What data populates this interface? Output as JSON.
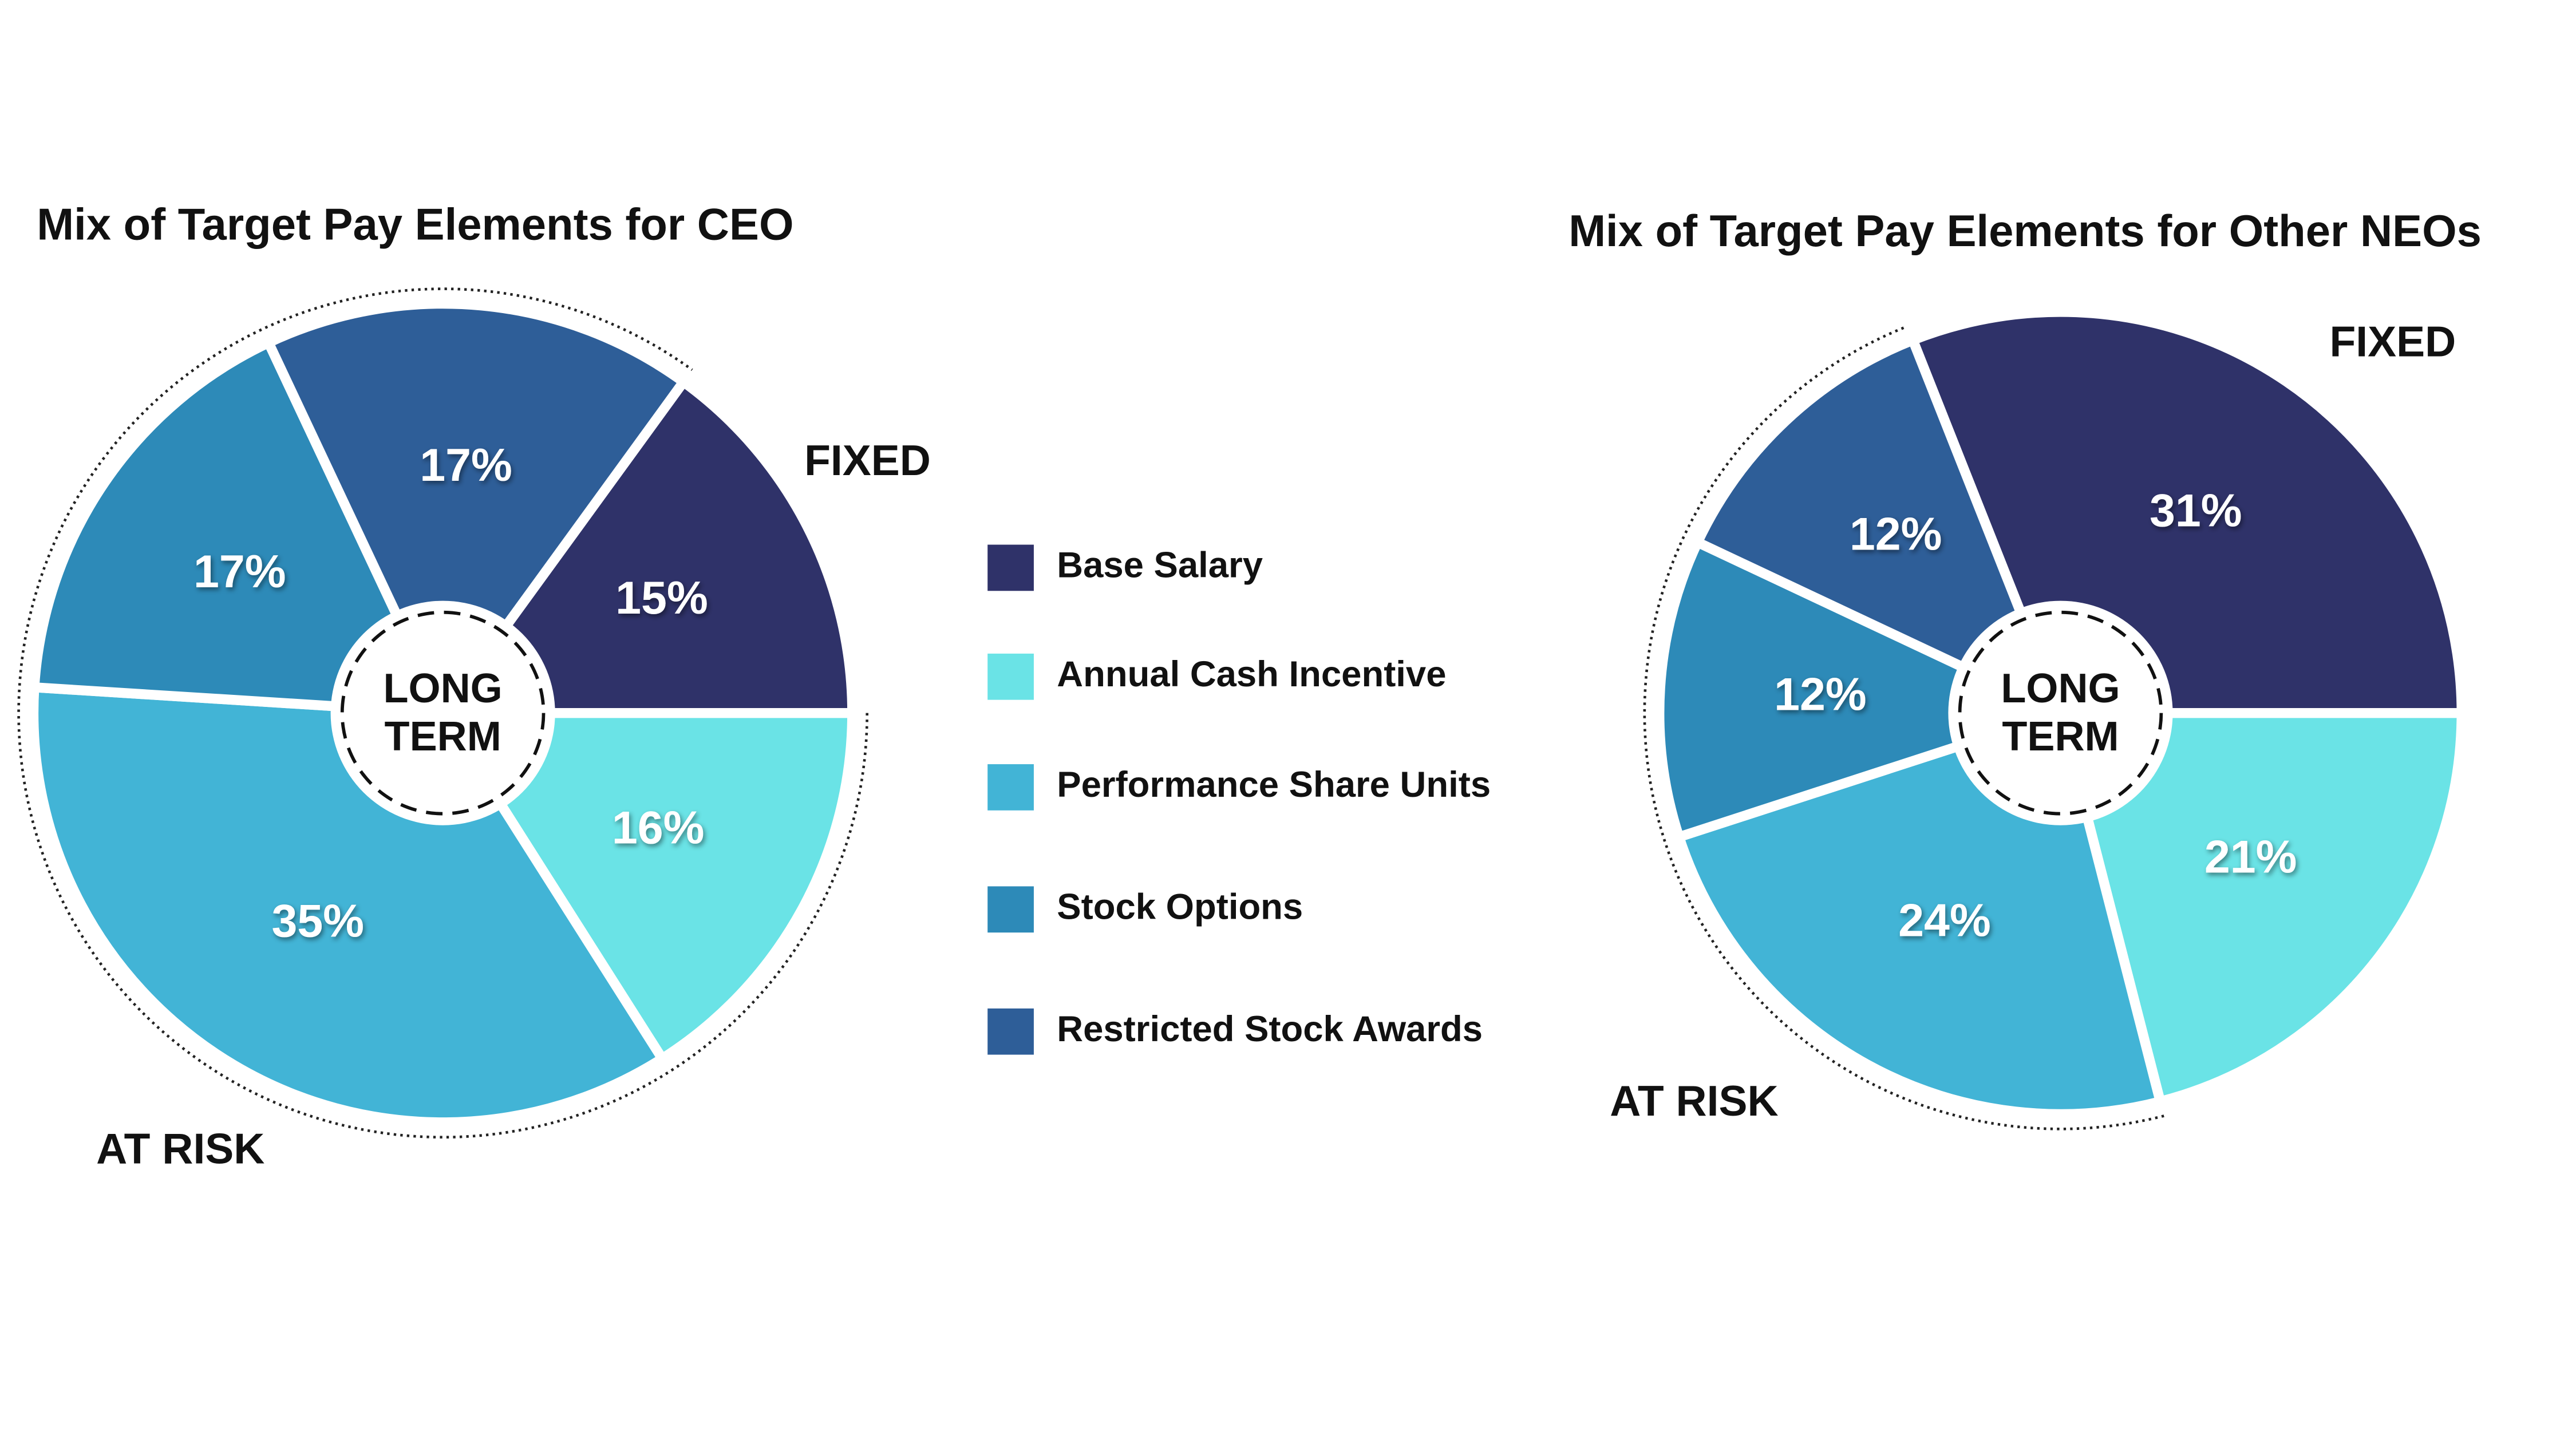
{
  "chart_data": [
    {
      "type": "pie",
      "title": "Mix of Target Pay Elements for CEO",
      "categories": [
        "Base Salary",
        "Annual Cash Incentive",
        "Performance Share Units",
        "Stock Options",
        "Restricted Stock Awards"
      ],
      "values": [
        15,
        16,
        35,
        17,
        17
      ],
      "value_labels": [
        "15%",
        "16%",
        "35%",
        "17%",
        "17%"
      ],
      "colors": [
        "#2f3269",
        "#6ae3e6",
        "#42b4d6",
        "#2d8ab8",
        "#2e5e98"
      ],
      "annotations": [
        "FIXED",
        "AT RISK"
      ],
      "center_label": [
        "LONG",
        "TERM"
      ]
    },
    {
      "type": "pie",
      "title": "Mix of Target Pay Elements for Other NEOs",
      "categories": [
        "Base Salary",
        "Annual Cash Incentive",
        "Performance Share Units",
        "Stock Options",
        "Restricted Stock Awards"
      ],
      "values": [
        31,
        21,
        24,
        12,
        12
      ],
      "value_labels": [
        "31%",
        "21%",
        "24%",
        "12%",
        "12%"
      ],
      "colors": [
        "#2f3269",
        "#6ae3e6",
        "#42b4d6",
        "#2d8ab8",
        "#2e5e98"
      ],
      "annotations": [
        "FIXED",
        "AT RISK"
      ],
      "center_label": [
        "LONG",
        "TERM"
      ]
    }
  ]
}
